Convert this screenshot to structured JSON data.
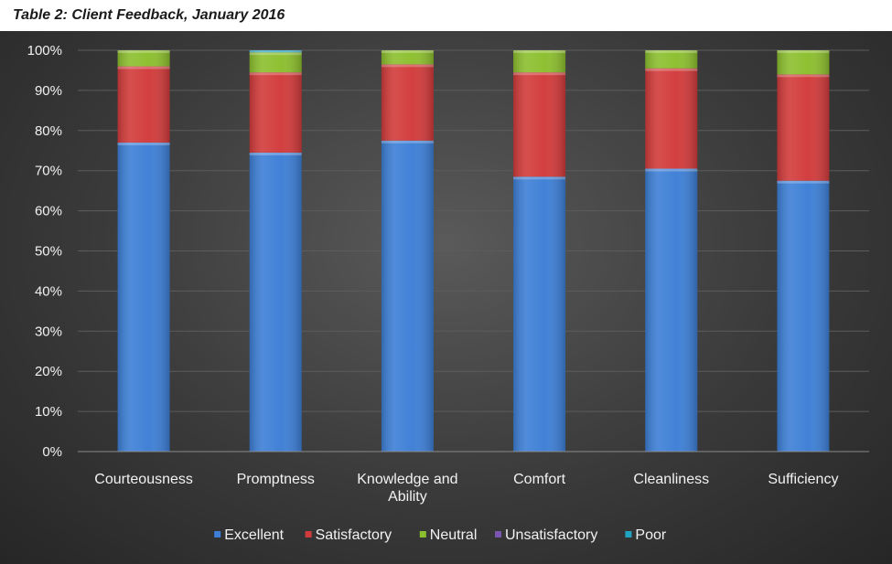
{
  "caption": "Table 2: Client Feedback, January 2016",
  "chart_data": {
    "type": "bar",
    "stacked": true,
    "percent": true,
    "categories": [
      "Courteousness",
      "Promptness",
      "Knowledge and Ability",
      "Comfort",
      "Cleanliness",
      "Sufficiency"
    ],
    "series": [
      {
        "name": "Excellent",
        "color": "#3d7fd6",
        "values": [
          77,
          74.5,
          77.5,
          68.5,
          70.5,
          67.5
        ]
      },
      {
        "name": "Satisfactory",
        "color": "#d23b3b",
        "values": [
          19,
          20,
          19,
          26,
          25,
          26.5
        ]
      },
      {
        "name": "Neutral",
        "color": "#8cbf2e",
        "values": [
          4,
          5,
          3.5,
          5.5,
          4.5,
          6
        ]
      },
      {
        "name": "Unsatisfactory",
        "color": "#7a55b0",
        "values": [
          0,
          0,
          0,
          0,
          0,
          0
        ]
      },
      {
        "name": "Poor",
        "color": "#21a3c2",
        "values": [
          0,
          0.5,
          0,
          0,
          0,
          0
        ]
      }
    ],
    "yticks": [
      "0%",
      "10%",
      "20%",
      "30%",
      "40%",
      "50%",
      "60%",
      "70%",
      "80%",
      "90%",
      "100%"
    ],
    "ylim": [
      0,
      100
    ],
    "grid": true,
    "legend": "bottom"
  }
}
